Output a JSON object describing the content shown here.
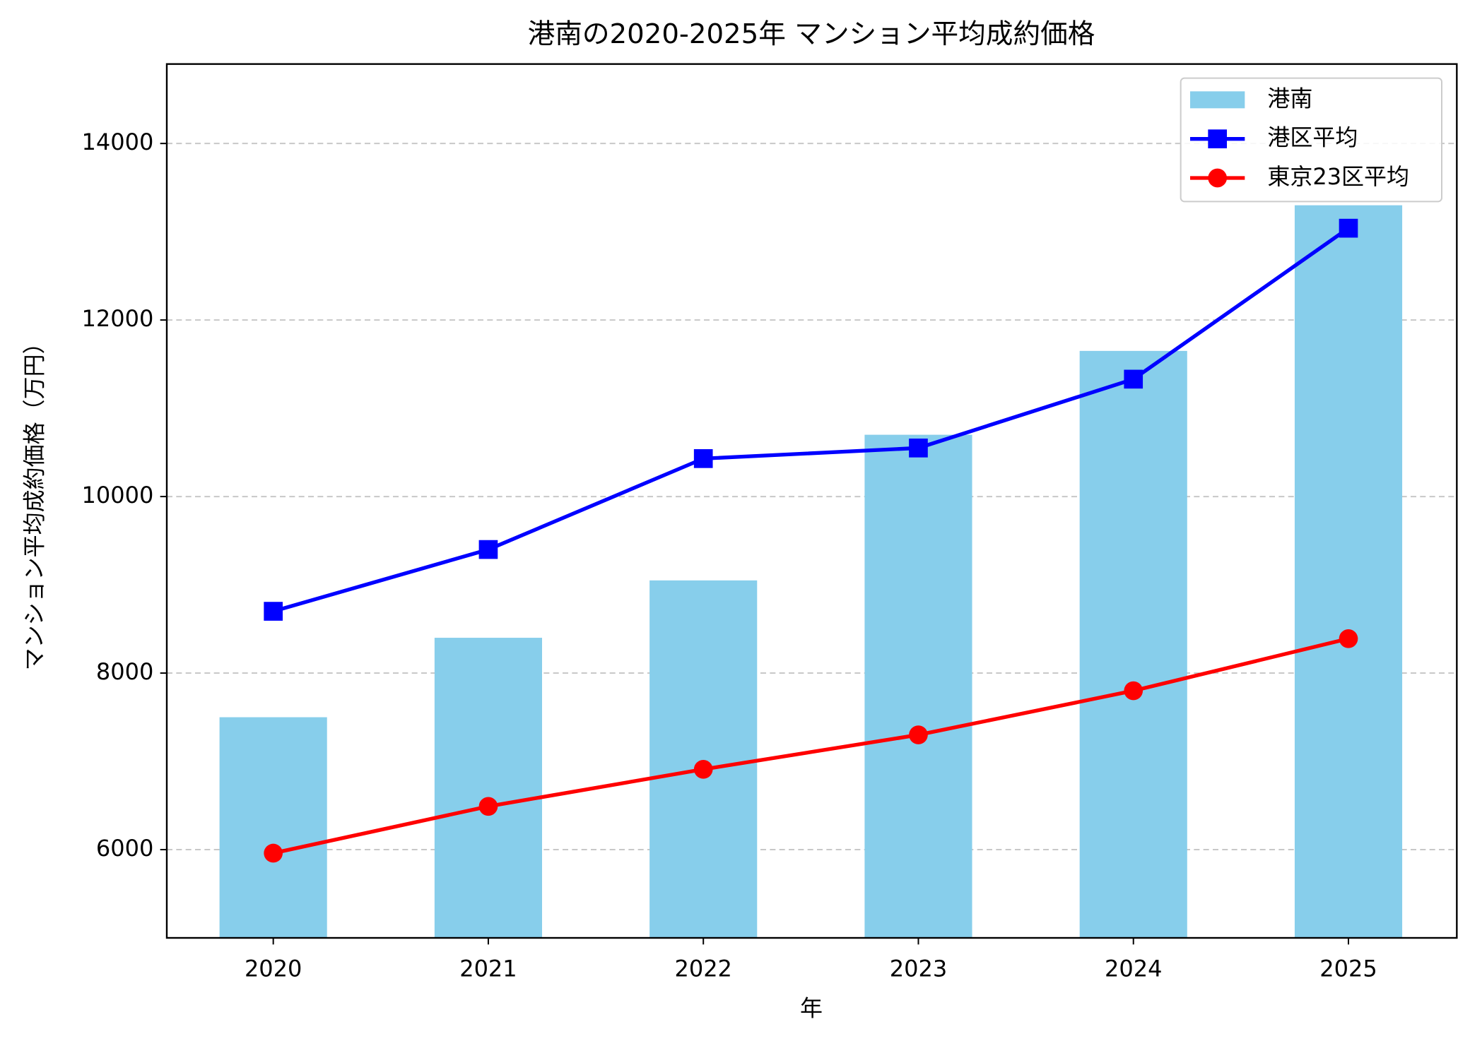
{
  "chart_data": {
    "type": "bar_line",
    "title": "港南の2020-2025年 マンション平均成約価格",
    "xlabel": "年",
    "ylabel": "マンション平均成約価格（万円）",
    "categories": [
      "2020",
      "2021",
      "2022",
      "2023",
      "2024",
      "2025"
    ],
    "series": [
      {
        "name": "港南",
        "type": "bar",
        "color": "#87ceeb",
        "values": [
          7500,
          8400,
          9050,
          10700,
          11650,
          13300
        ]
      },
      {
        "name": "港区平均",
        "type": "line",
        "marker": "square",
        "color": "#0000ff",
        "values": [
          8700,
          9400,
          10430,
          10550,
          11330,
          13040
        ]
      },
      {
        "name": "東京23区平均",
        "type": "line",
        "marker": "circle",
        "color": "#ff0000",
        "values": [
          5960,
          6490,
          6910,
          7300,
          7800,
          8390
        ]
      }
    ],
    "ylim": [
      5000,
      14900
    ],
    "yticks": [
      6000,
      8000,
      10000,
      12000,
      14000
    ],
    "grid": true,
    "legend": "upper right"
  }
}
